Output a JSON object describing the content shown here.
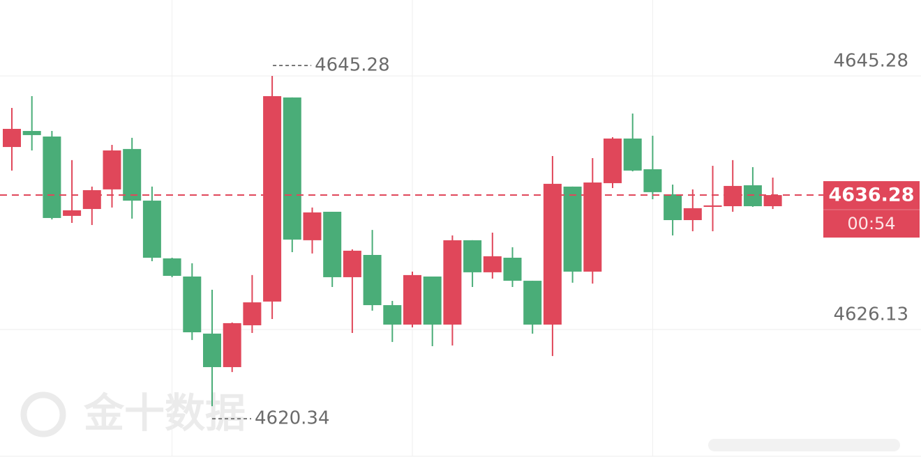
{
  "chart_data": {
    "type": "candlestick",
    "open": [
      4639.91,
      4641.12,
      4640.7,
      4634.71,
      4635.23,
      4636.71,
      4639.76,
      4635.86,
      4631.5,
      4630.13,
      4625.82,
      4623.29,
      4626.45,
      4628.24,
      4643.65,
      4632.87,
      4635.02,
      4630.08,
      4631.76,
      4627.97,
      4626.5,
      4630.13,
      4626.5,
      4632.87,
      4630.45,
      4631.55,
      4629.81,
      4626.5,
      4636.92,
      4630.5,
      4637.18,
      4640.55,
      4638.23,
      4636.34,
      4634.39,
      4635.39,
      4635.44,
      4637.02,
      4635.44
    ],
    "high": [
      4642.86,
      4643.75,
      4641.12,
      4638.92,
      4636.92,
      4640.07,
      4640.6,
      4636.92,
      4631.55,
      4631.13,
      4629.13,
      4626.66,
      4630.24,
      4645.28,
      4643.65,
      4635.34,
      4635.02,
      4632.18,
      4633.65,
      4628.29,
      4630.5,
      4630.13,
      4633.23,
      4632.87,
      4633.44,
      4632.34,
      4629.81,
      4639.23,
      4636.92,
      4639.07,
      4640.65,
      4642.44,
      4640.76,
      4637.07,
      4636.71,
      4638.49,
      4638.92,
      4638.39,
      4637.6
    ],
    "low": [
      4638.13,
      4639.65,
      4634.44,
      4634.18,
      4634.02,
      4635.34,
      4634.5,
      4631.29,
      4630.08,
      4625.34,
      4620.34,
      4622.92,
      4625.87,
      4626.92,
      4631.97,
      4631.87,
      4629.34,
      4625.87,
      4627.55,
      4625.19,
      4626.29,
      4624.87,
      4624.92,
      4629.34,
      4629.97,
      4629.34,
      4625.82,
      4624.13,
      4629.66,
      4629.6,
      4636.81,
      4638.07,
      4635.97,
      4633.23,
      4633.55,
      4633.55,
      4635.02,
      4635.39,
      4635.23
    ],
    "close": [
      4641.28,
      4640.81,
      4634.55,
      4635.13,
      4636.65,
      4639.65,
      4635.86,
      4631.55,
      4630.18,
      4625.92,
      4623.29,
      4626.61,
      4628.18,
      4643.75,
      4632.92,
      4634.97,
      4630.08,
      4632.08,
      4627.97,
      4626.5,
      4630.24,
      4626.5,
      4632.87,
      4630.45,
      4631.66,
      4629.81,
      4626.5,
      4637.13,
      4630.5,
      4637.23,
      4640.55,
      4638.13,
      4636.5,
      4634.39,
      4635.29,
      4635.5,
      4636.97,
      4635.44,
      4636.28
    ],
    "up_color": "#e0475a",
    "down_color": "#4aad78",
    "ylim": [
      4616.56,
      4651.01
    ],
    "yticks": [
      4626.13,
      4645.28
    ],
    "grid": true,
    "countdown": "00:54",
    "watermark": "金十数据"
  }
}
